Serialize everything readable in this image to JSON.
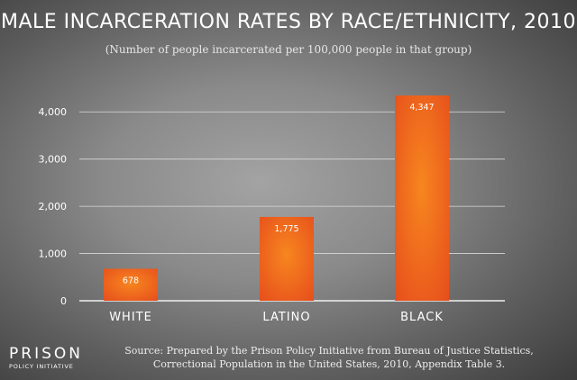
{
  "chart_data": {
    "type": "bar",
    "title": "MALE INCARCERATION RATES BY RACE/ETHNICITY, 2010",
    "subtitle": "(Number of people incarcerated per 100,000 people in that group)",
    "categories": [
      "WHITE",
      "LATINO",
      "BLACK"
    ],
    "values": [
      678,
      1775,
      4347
    ],
    "data_labels": [
      "678",
      "1,775",
      "4,347"
    ],
    "xlabel": "",
    "ylabel": "",
    "ylim": [
      0,
      4500
    ],
    "yticks": [
      0,
      1000,
      2000,
      3000,
      4000
    ],
    "ytick_labels": [
      "0",
      "1,000",
      "2,000",
      "3,000",
      "4,000"
    ],
    "grid": true,
    "legend": "none",
    "bar_color": "#ee5a1e",
    "bar_highlight_color": "#f7861f"
  },
  "source": {
    "line1": "Source: Prepared by the Prison Policy Initiative from Bureau of Justice Statistics,",
    "line2": "Correctional Population in the United States, 2010, Appendix Table 3."
  },
  "logo": {
    "main": "PRISON",
    "sub": "POLICY INITIATIVE"
  }
}
